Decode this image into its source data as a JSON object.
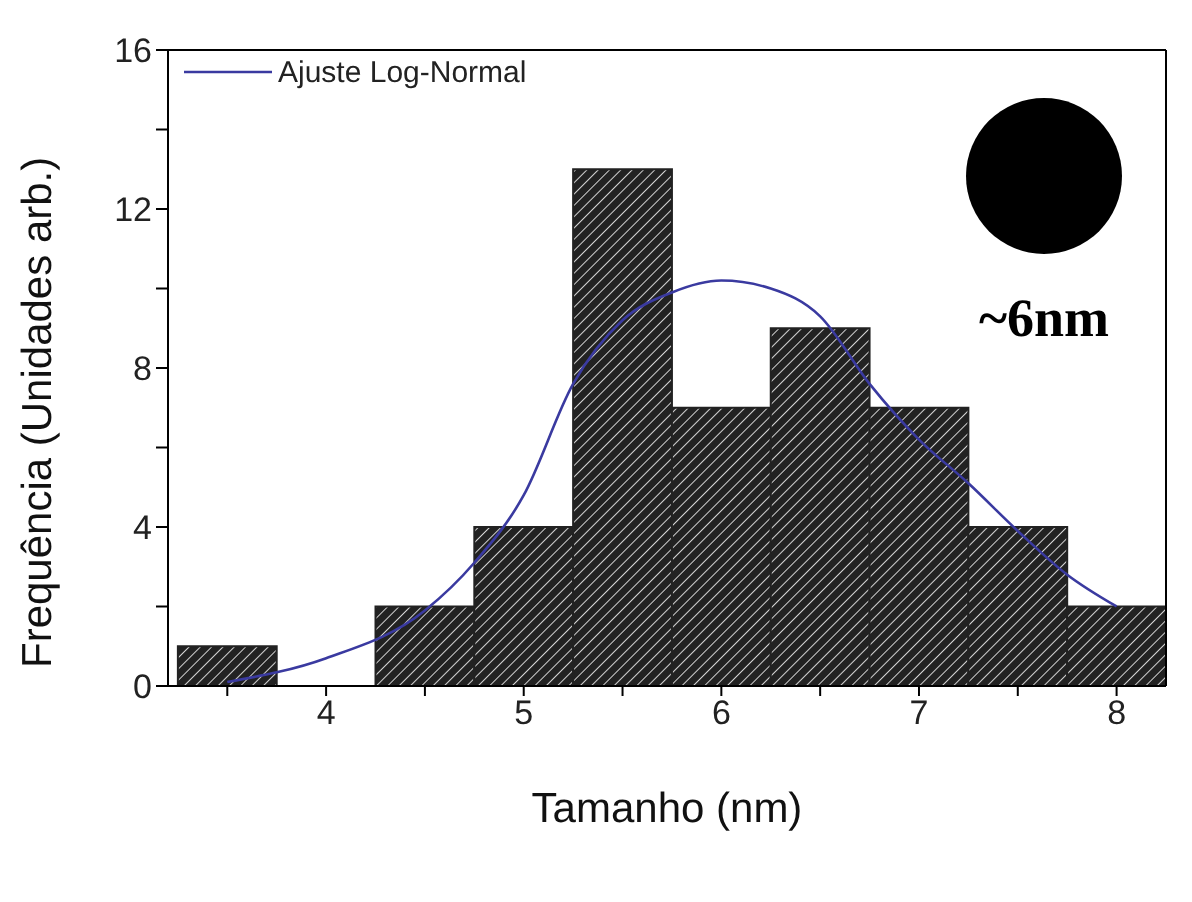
{
  "chart_data": {
    "type": "histogram",
    "xlabel": "Tamanho (nm)",
    "ylabel": "Frequência (Unidades arb.)",
    "bins": [
      3.25,
      3.75,
      4.25,
      4.75,
      5.25,
      5.75,
      6.25,
      6.75,
      7.25,
      7.75,
      8.25
    ],
    "values": [
      1,
      0,
      2,
      4,
      13,
      7,
      9,
      7,
      4,
      2
    ],
    "color": "#222222",
    "series": [
      {
        "type": "line",
        "name": "Ajuste Log-Normal",
        "color": "#3a3aa0",
        "x": [
          3.5,
          4,
          4.5,
          4.75,
          5,
          5.25,
          5.5,
          5.75,
          6,
          6.25,
          6.5,
          6.75,
          7,
          7.25,
          7.5,
          7.75,
          8
        ],
        "values": [
          0.1,
          0.7,
          1.9,
          3.1,
          4.8,
          7.6,
          9.2,
          9.9,
          10.2,
          10,
          9.3,
          7.6,
          6.2,
          5.1,
          3.9,
          2.8,
          2
        ]
      }
    ],
    "xlim": [
      3.2,
      8.25
    ],
    "xticks": [
      {
        "value": 3.5,
        "label": null
      },
      4,
      {
        "value": 4.5,
        "label": null
      },
      5,
      {
        "value": 5.5,
        "label": null
      },
      6,
      {
        "value": 6.5,
        "label": null
      },
      7,
      {
        "value": 7.5,
        "label": null
      },
      8
    ],
    "ylim": [
      0,
      16
    ],
    "yticks": [
      0,
      {
        "value": 2,
        "label": null
      },
      4,
      {
        "value": 6,
        "label": null
      },
      8,
      {
        "value": 10,
        "label": null
      },
      12,
      {
        "value": 14,
        "label": null
      },
      16
    ],
    "annotations": [
      "~6nm"
    ],
    "legend": "top left",
    "marker": "none",
    "line_style": "solid"
  }
}
